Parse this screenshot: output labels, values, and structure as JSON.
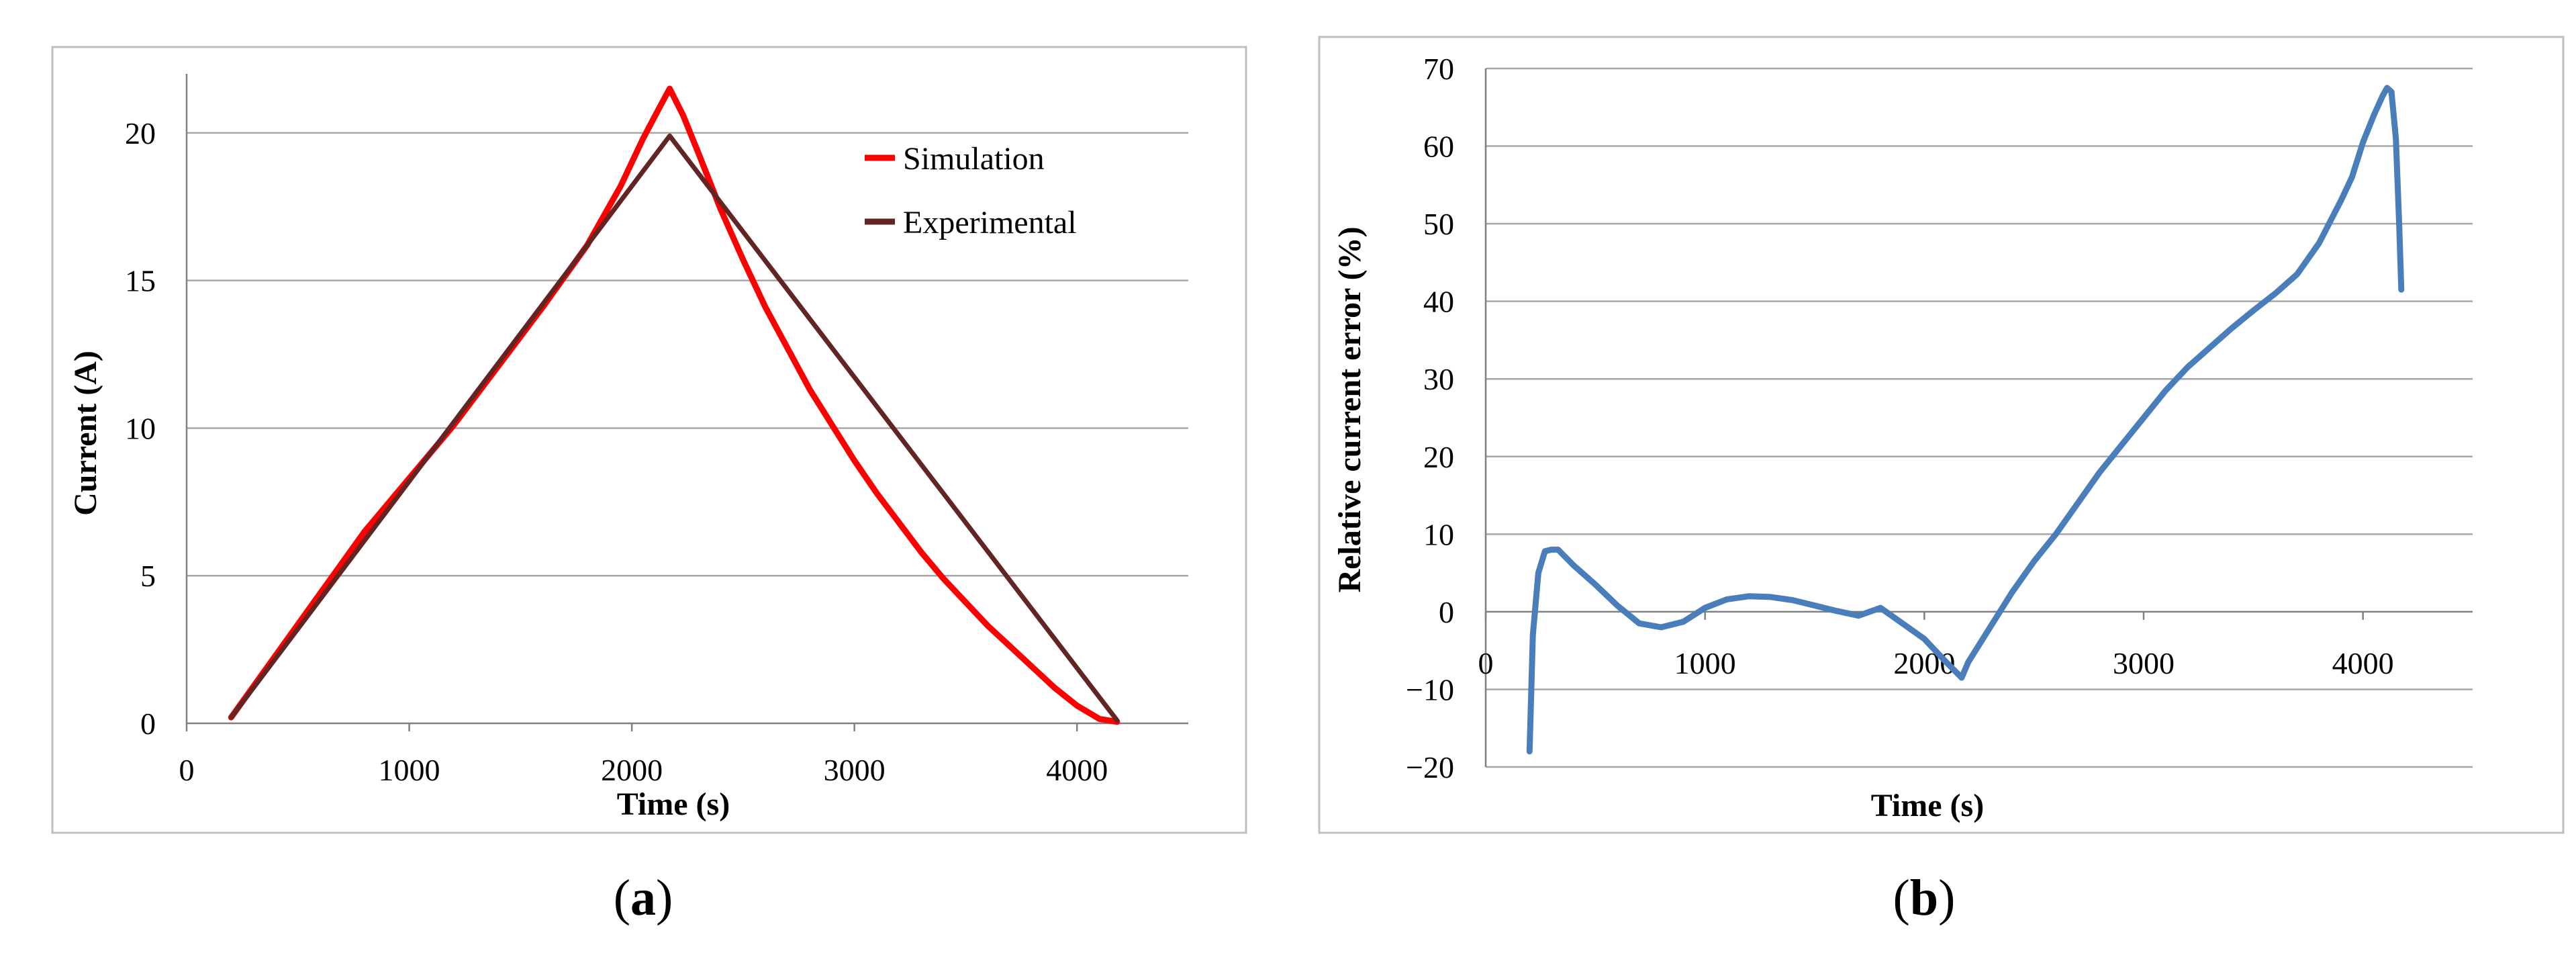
{
  "chart_data": [
    {
      "type": "line",
      "panel": "a",
      "caption": "a",
      "xlabel": "Time (s)",
      "ylabel": "Current (A)",
      "xlim": [
        0,
        4500
      ],
      "ylim": [
        0,
        22
      ],
      "xticks": [
        0,
        1000,
        2000,
        3000,
        4000
      ],
      "yticks": [
        0,
        5,
        10,
        15,
        20
      ],
      "grid": "horizontal",
      "legend_position": "top-right",
      "series": [
        {
          "name": "Simulation",
          "color": "#ff0000",
          "x": [
            200,
            400,
            600,
            800,
            1000,
            1200,
            1400,
            1600,
            1800,
            1950,
            2050,
            2120,
            2170,
            2230,
            2300,
            2400,
            2500,
            2600,
            2700,
            2800,
            2900,
            3000,
            3100,
            3200,
            3300,
            3400,
            3500,
            3600,
            3700,
            3800,
            3900,
            4000,
            4100,
            4180
          ],
          "y": [
            0.2,
            2.3,
            4.4,
            6.5,
            8.3,
            10.1,
            12.1,
            14.1,
            16.2,
            18.2,
            19.8,
            20.8,
            21.5,
            20.6,
            19.3,
            17.4,
            15.7,
            14.1,
            12.7,
            11.3,
            10.1,
            8.9,
            7.8,
            6.8,
            5.8,
            4.9,
            4.1,
            3.3,
            2.6,
            1.9,
            1.2,
            0.6,
            0.15,
            0.05
          ]
        },
        {
          "name": "Experimental",
          "color": "#632523",
          "x": [
            200,
            2170,
            4180
          ],
          "y": [
            0.2,
            19.9,
            0.1
          ]
        }
      ]
    },
    {
      "type": "line",
      "panel": "b",
      "caption": "b",
      "xlabel": "Time (s)",
      "ylabel": "Relative current error (%)",
      "xlim": [
        0,
        4500
      ],
      "ylim": [
        -20,
        70
      ],
      "xticks": [
        0,
        1000,
        2000,
        3000,
        4000
      ],
      "yticks": [
        -20,
        -10,
        0,
        10,
        20,
        30,
        40,
        50,
        60,
        70
      ],
      "grid": "horizontal",
      "series": [
        {
          "name": "Relative current error",
          "color": "#4a7ebb",
          "x": [
            200,
            215,
            240,
            270,
            300,
            330,
            400,
            500,
            600,
            700,
            800,
            900,
            1000,
            1100,
            1200,
            1300,
            1400,
            1500,
            1600,
            1700,
            1800,
            1900,
            2000,
            2100,
            2170,
            2200,
            2300,
            2400,
            2500,
            2600,
            2700,
            2800,
            2900,
            3000,
            3100,
            3200,
            3300,
            3400,
            3500,
            3600,
            3700,
            3800,
            3900,
            3950,
            4000,
            4050,
            4090,
            4110,
            4130,
            4150,
            4165,
            4175
          ],
          "y": [
            -18,
            -3,
            5,
            7.8,
            8,
            8,
            6,
            3.5,
            0.8,
            -1.5,
            -2,
            -1.3,
            0.5,
            1.6,
            2,
            1.9,
            1.5,
            0.8,
            0.1,
            -0.5,
            0.5,
            -1.5,
            -3.5,
            -6.5,
            -8.5,
            -6.5,
            -2,
            2.5,
            6.5,
            10,
            14,
            18,
            21.5,
            25,
            28.5,
            31.5,
            34,
            36.5,
            38.8,
            41,
            43.5,
            47.5,
            53,
            56,
            60.5,
            64,
            66.5,
            67.5,
            67,
            61,
            50,
            41.5
          ]
        }
      ]
    }
  ]
}
